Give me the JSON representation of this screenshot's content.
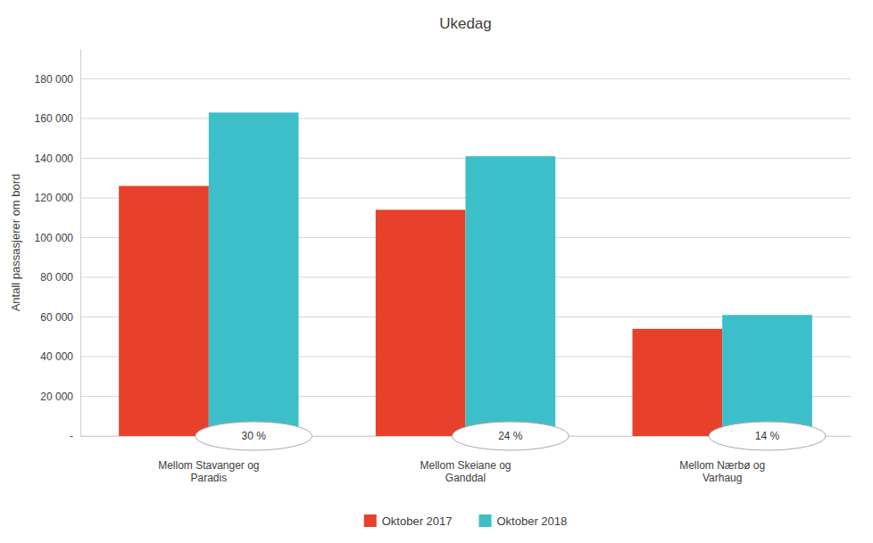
{
  "chart_data": {
    "type": "bar",
    "title": "Ukedag",
    "categories": [
      "Mellom Stavanger og\nParadis",
      "Mellom Skeiane og\nGanddal",
      "Mellom Nærbø og\nVarhaug"
    ],
    "series": [
      {
        "name": "Oktober 2017",
        "color": "#E8412B",
        "values": [
          126000,
          114000,
          54000
        ]
      },
      {
        "name": "Oktober 2018",
        "color": "#3DBFC9",
        "values": [
          163000,
          141000,
          61000
        ]
      }
    ],
    "ylabel": "Antall passasjerer om bord",
    "ylim": [
      0,
      195000
    ],
    "yticks": [
      {
        "value": 0,
        "label": "-"
      },
      {
        "value": 20000,
        "label": "20 000"
      },
      {
        "value": 40000,
        "label": "40 000"
      },
      {
        "value": 60000,
        "label": "60 000"
      },
      {
        "value": 80000,
        "label": "80 000"
      },
      {
        "value": 100000,
        "label": "100 000"
      },
      {
        "value": 120000,
        "label": "120 000"
      },
      {
        "value": 140000,
        "label": "140 000"
      },
      {
        "value": 160000,
        "label": "160 000"
      },
      {
        "value": 180000,
        "label": "180 000"
      }
    ],
    "annotations": [
      "30 %",
      "24 %",
      "14 %"
    ],
    "grid": true,
    "legend": "bottom"
  }
}
